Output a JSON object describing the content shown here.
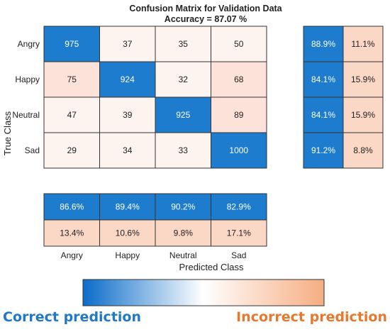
{
  "colors": {
    "diag": "#1d7ccd",
    "offdiag_light": "#fdf3ef",
    "offdiag_mid": "#fce2d8",
    "incorrect_cell": "#fbd7c6",
    "gradient_start": "#0a6cc9",
    "gradient_mid": "#ffffff",
    "gradient_end": "#f6ad82",
    "legend_correct": "#1f79c7",
    "legend_incorrect": "#e8782d"
  },
  "chart_data": {
    "type": "heatmap",
    "title": "Confusion Matrix for Validation Data",
    "subtitle": "Accuracy = 87.07 %",
    "xlabel": "Predicted Class",
    "ylabel": "True Class",
    "classes": [
      "Angry",
      "Happy",
      "Neutral",
      "Sad"
    ],
    "matrix": [
      [
        975,
        37,
        35,
        50
      ],
      [
        75,
        924,
        32,
        68
      ],
      [
        47,
        39,
        925,
        89
      ],
      [
        29,
        34,
        33,
        1000
      ]
    ],
    "row_summary": {
      "correct": [
        "88.9%",
        "84.1%",
        "84.1%",
        "91.2%"
      ],
      "incorrect": [
        "11.1%",
        "15.9%",
        "15.9%",
        "8.8%"
      ]
    },
    "column_summary": {
      "correct": [
        "86.6%",
        "89.4%",
        "90.2%",
        "82.9%"
      ],
      "incorrect": [
        "13.4%",
        "10.6%",
        "9.8%",
        "17.1%"
      ]
    }
  },
  "legend": {
    "correct_label": "Correct prediction",
    "incorrect_label": "Incorrect prediction"
  }
}
